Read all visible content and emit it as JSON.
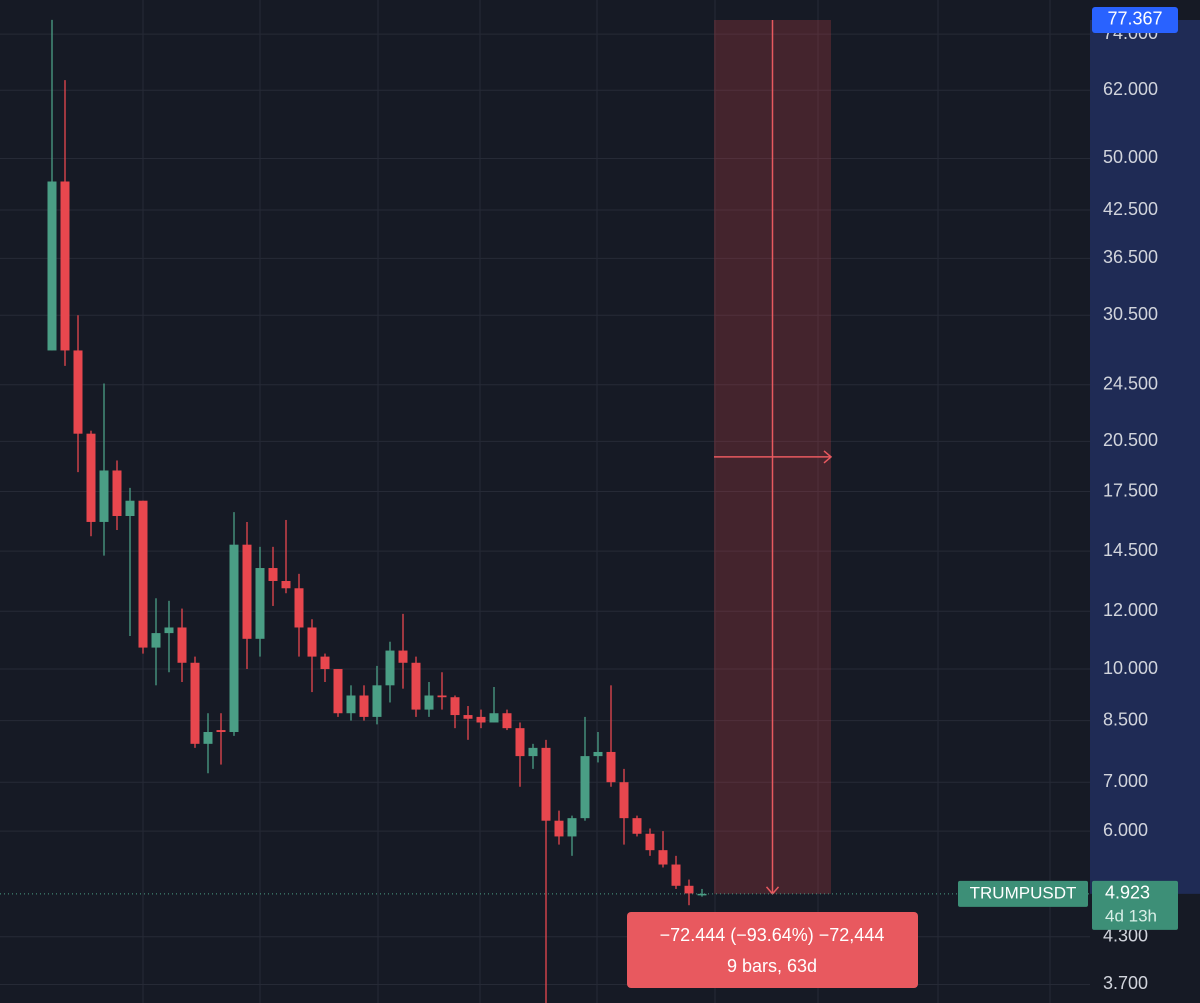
{
  "chart_data": {
    "type": "candlestick",
    "symbol": "TRUMPUSDT",
    "last_price": 4.923,
    "countdown": "4d 13h",
    "log_scale": true,
    "grid": true,
    "up_color": "#4a9e85",
    "down_color": "#e8474e",
    "ylim": [
      3.49,
      82.4
    ],
    "yticks": [
      {
        "value": 74,
        "label": "74.000"
      },
      {
        "value": 62,
        "label": "62.000"
      },
      {
        "value": 50,
        "label": "50.000"
      },
      {
        "value": 42.5,
        "label": "42.500"
      },
      {
        "value": 36.5,
        "label": "36.500"
      },
      {
        "value": 30.5,
        "label": "30.500"
      },
      {
        "value": 24.5,
        "label": "24.500"
      },
      {
        "value": 20.5,
        "label": "20.500"
      },
      {
        "value": 17.5,
        "label": "17.500"
      },
      {
        "value": 14.5,
        "label": "14.500"
      },
      {
        "value": 12,
        "label": "12.000"
      },
      {
        "value": 10,
        "label": "10.000"
      },
      {
        "value": 8.5,
        "label": "8.500"
      },
      {
        "value": 7,
        "label": "7.000"
      },
      {
        "value": 6,
        "label": "6.000"
      },
      {
        "value": 4.3,
        "label": "4.300"
      },
      {
        "value": 3.7,
        "label": "3.700"
      }
    ],
    "open": [
      27.3,
      46.5,
      27.3,
      21.0,
      15.9,
      18.7,
      16.2,
      17.0,
      10.7,
      11.2,
      11.4,
      10.2,
      7.9,
      8.25,
      8.2,
      14.8,
      11.0,
      13.75,
      13.2,
      12.9,
      11.4,
      10.4,
      10.0,
      8.7,
      9.2,
      8.6,
      9.5,
      10.6,
      10.2,
      8.8,
      9.2,
      9.15,
      8.65,
      8.6,
      8.45,
      8.7,
      8.3,
      7.6,
      7.8,
      6.2,
      5.9,
      6.25,
      7.6,
      7.7,
      7.0,
      6.25,
      5.95,
      5.65,
      5.4,
      5.05,
      4.91
    ],
    "high": [
      77.4,
      64.0,
      30.5,
      21.2,
      24.6,
      19.3,
      17.7,
      17.0,
      12.5,
      12.4,
      12.1,
      10.4,
      8.7,
      8.7,
      16.4,
      15.9,
      14.7,
      14.7,
      16.0,
      13.5,
      11.7,
      10.5,
      10.0,
      9.5,
      9.5,
      10.1,
      10.9,
      11.9,
      10.4,
      9.6,
      9.9,
      9.2,
      8.9,
      8.8,
      9.45,
      8.8,
      8.45,
      7.9,
      8.0,
      6.4,
      6.3,
      8.6,
      8.2,
      9.5,
      7.3,
      6.3,
      6.05,
      6.0,
      5.55,
      5.15,
      5.0
    ],
    "low": [
      27.3,
      26.0,
      18.6,
      15.2,
      14.3,
      15.5,
      11.1,
      10.5,
      9.5,
      9.9,
      9.6,
      7.8,
      7.2,
      7.4,
      8.1,
      10.0,
      10.4,
      12.2,
      12.7,
      10.4,
      9.3,
      9.6,
      8.6,
      8.5,
      8.5,
      8.4,
      9.0,
      9.4,
      8.6,
      8.6,
      8.8,
      8.3,
      8.0,
      8.3,
      8.45,
      8.25,
      6.9,
      7.3,
      3.49,
      5.75,
      5.55,
      6.2,
      7.45,
      6.9,
      5.75,
      5.9,
      5.55,
      5.35,
      5.0,
      4.75,
      4.88
    ],
    "close": [
      46.5,
      27.3,
      21.0,
      15.9,
      18.7,
      16.2,
      17.0,
      10.7,
      11.2,
      11.4,
      10.2,
      7.9,
      8.2,
      8.2,
      14.8,
      11.0,
      13.75,
      13.2,
      12.9,
      11.4,
      10.4,
      10.0,
      8.7,
      9.2,
      8.6,
      9.5,
      10.6,
      10.2,
      8.8,
      9.2,
      9.15,
      8.65,
      8.55,
      8.45,
      8.7,
      8.3,
      7.6,
      7.8,
      6.2,
      5.9,
      6.25,
      7.6,
      7.7,
      7.0,
      6.25,
      5.95,
      5.65,
      5.4,
      5.05,
      4.93,
      4.923
    ],
    "measure": {
      "high": 77.367,
      "low": 4.923,
      "label": "−72.444 (−93.64%) −72,444",
      "bars_label": "9 bars, 63d"
    }
  }
}
